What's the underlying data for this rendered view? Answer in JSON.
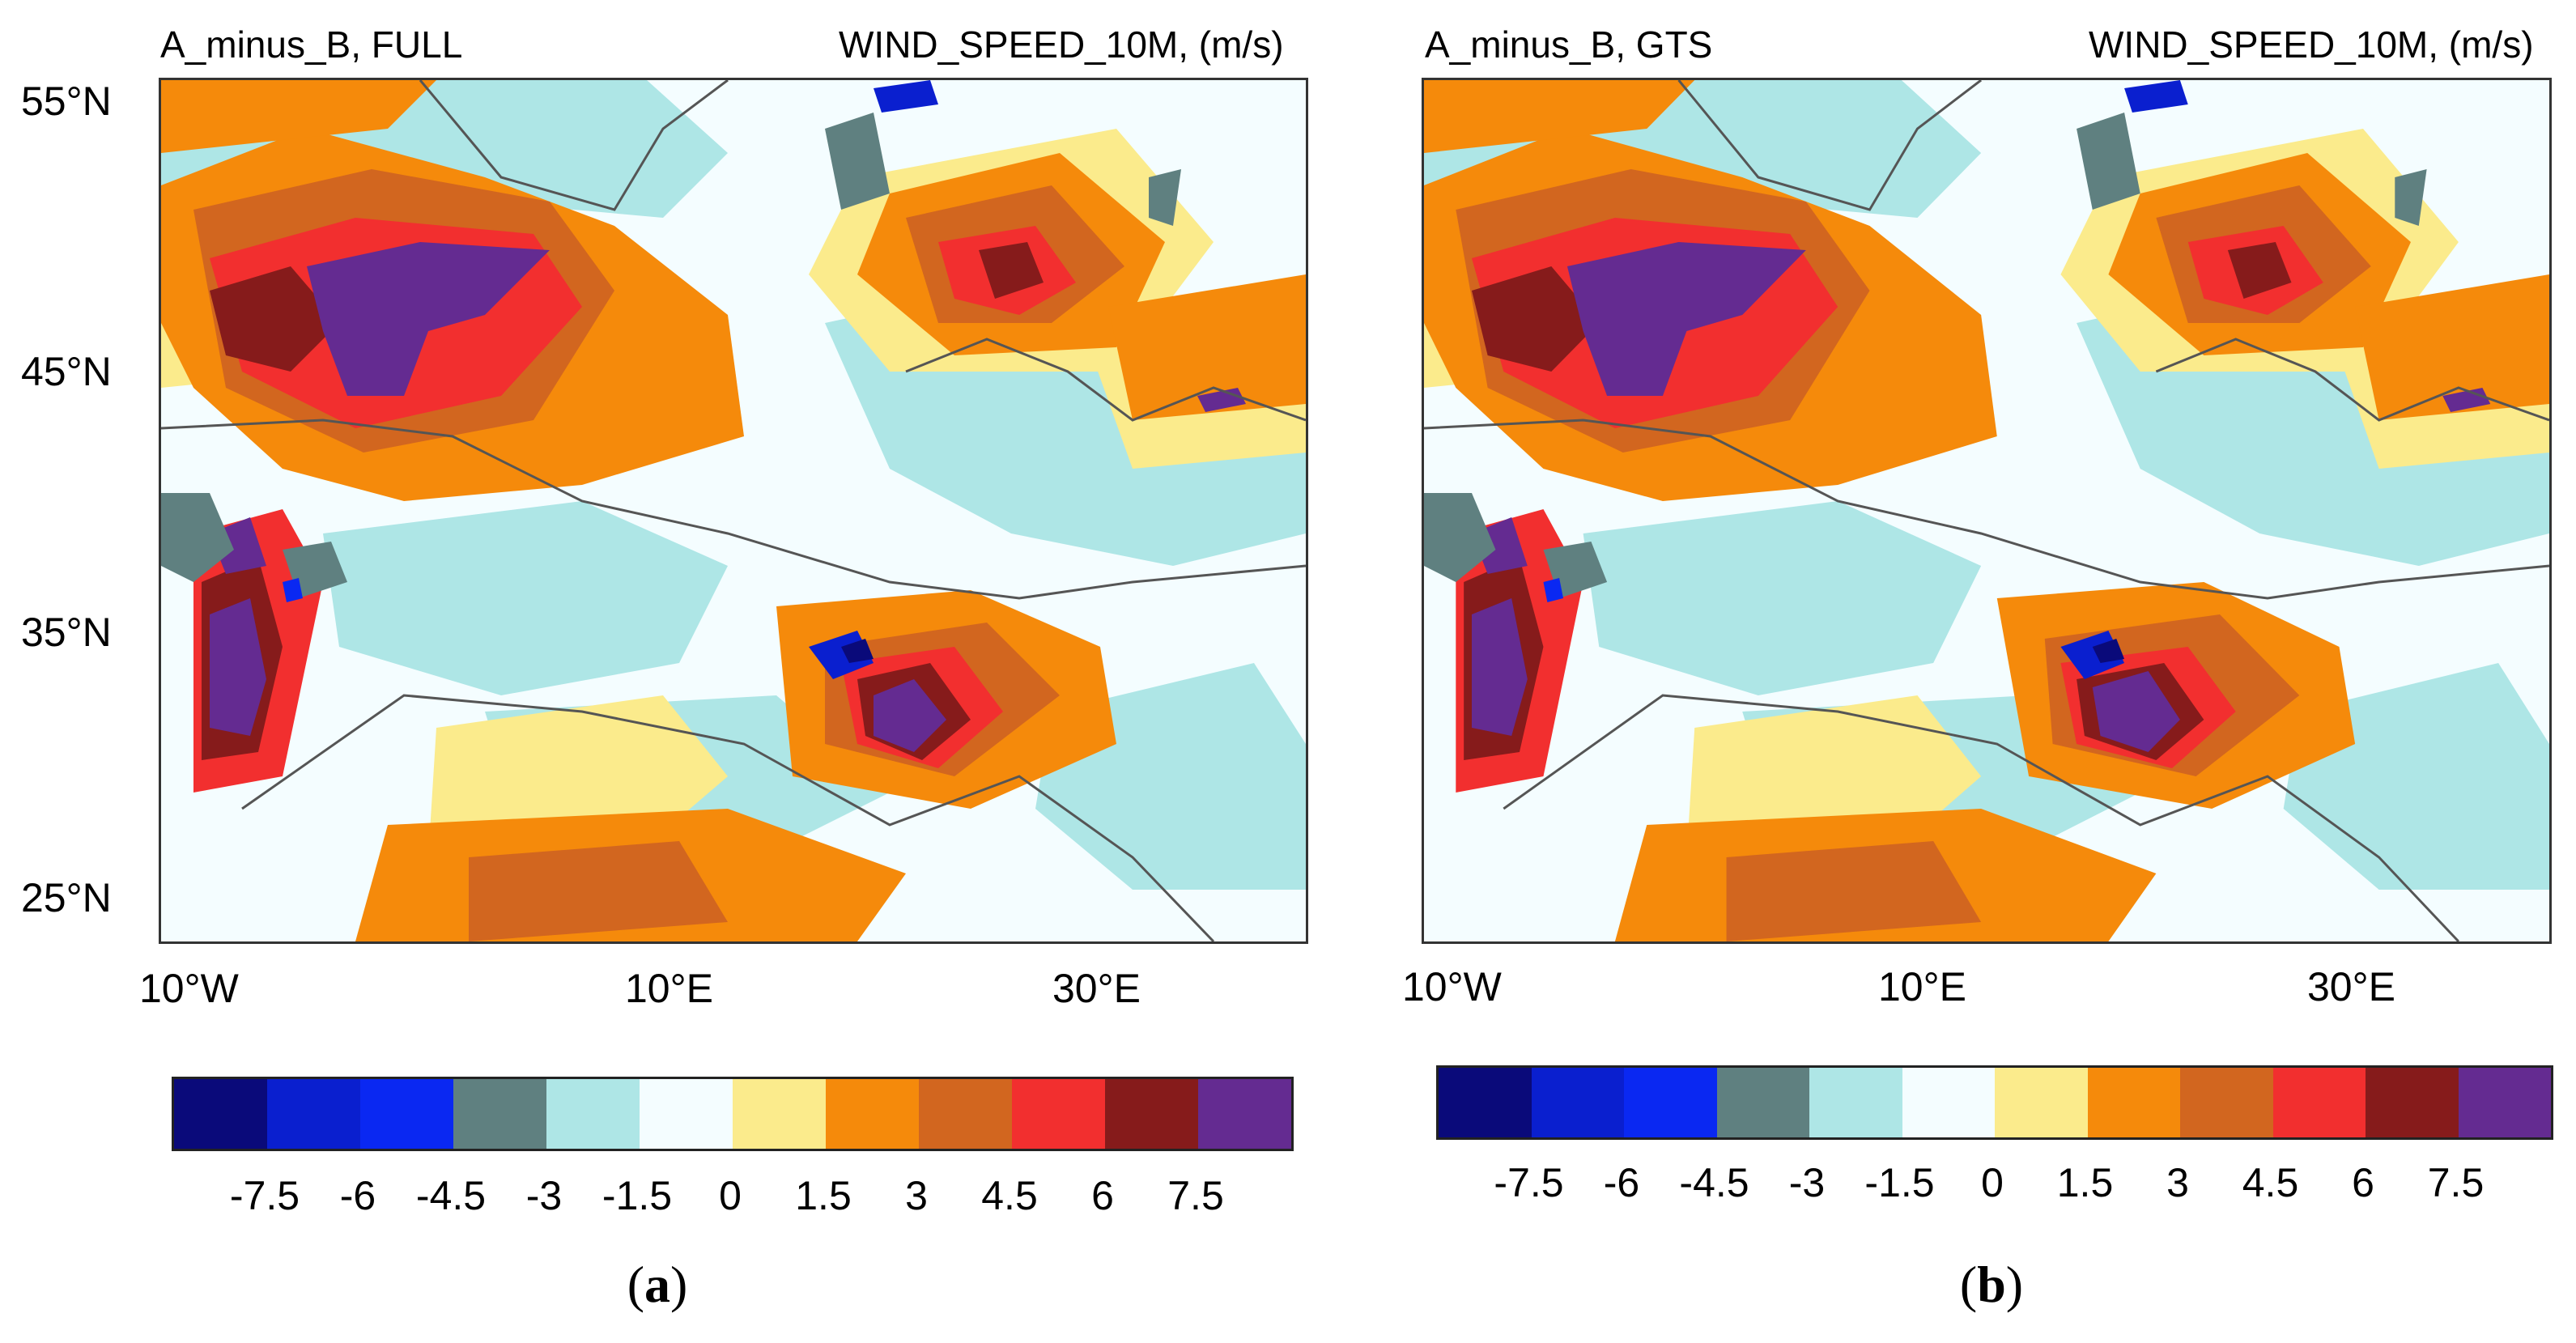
{
  "panels": [
    {
      "id": "a",
      "title_left": "A_minus_B, FULL",
      "title_right": "WIND_SPEED_10M, (m/s)",
      "caption_letter": "a",
      "lat_ticks": [
        "55°N",
        "45°N",
        "35°N",
        "25°N"
      ],
      "lon_ticks": [
        "10°W",
        "10°E",
        "30°E"
      ]
    },
    {
      "id": "b",
      "title_left": "A_minus_B, GTS",
      "title_right": "WIND_SPEED_10M, (m/s)",
      "caption_letter": "b",
      "lat_ticks": [
        "55°N",
        "45°N",
        "35°N",
        "25°N"
      ],
      "lon_ticks": [
        "10°W",
        "10°E",
        "30°E"
      ]
    }
  ],
  "colorbar": {
    "levels": [
      "-7.5",
      "-6",
      "-4.5",
      "-3",
      "-1.5",
      "0",
      "1.5",
      "3",
      "4.5",
      "6",
      "7.5"
    ],
    "colors": [
      "#0a0a7a",
      "#0a1fcf",
      "#0a28f2",
      "#5f8080",
      "#aee6e6",
      "#f4fdff",
      "#fbeb8c",
      "#f58a0b",
      "#d2661f",
      "#f22f2f",
      "#861b1b",
      "#642b91"
    ]
  }
}
